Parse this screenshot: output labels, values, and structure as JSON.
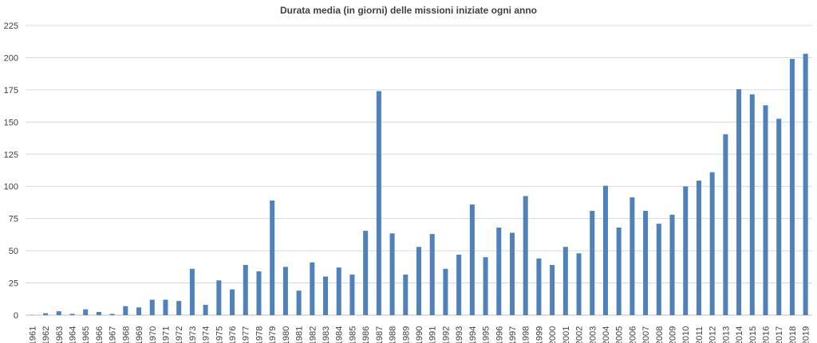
{
  "chart_data": {
    "type": "bar",
    "title": "Durata media (in giorni) delle missioni iniziate ogni anno",
    "xlabel": "",
    "ylabel": "",
    "ylim": [
      0,
      225
    ],
    "yticks": [
      0,
      25,
      50,
      75,
      100,
      125,
      150,
      175,
      200,
      225
    ],
    "grid": true,
    "legend": "none",
    "bar_color": "#4F81BD",
    "categories": [
      "1961",
      "1962",
      "1963",
      "1964",
      "1965",
      "1966",
      "1967",
      "1968",
      "1969",
      "1970",
      "1971",
      "1972",
      "1973",
      "1974",
      "1975",
      "1976",
      "1977",
      "1978",
      "1979",
      "1980",
      "1981",
      "1982",
      "1983",
      "1984",
      "1985",
      "1986",
      "1987",
      "1988",
      "1989",
      "1990",
      "1991",
      "1992",
      "1993",
      "1994",
      "1995",
      "1996",
      "1997",
      "1998",
      "1999",
      "2000",
      "2001",
      "2002",
      "2003",
      "2004",
      "2005",
      "2006",
      "2007",
      "2008",
      "2009",
      "2010",
      "2011",
      "2012",
      "2013",
      "2014",
      "2015",
      "2016",
      "2017",
      "2018",
      "2019"
    ],
    "values": [
      0.2,
      1.5,
      3,
      1,
      4.5,
      2.5,
      1,
      7,
      6,
      12,
      12,
      11,
      36,
      8,
      27,
      20,
      39,
      34,
      89,
      37.5,
      19,
      41,
      30,
      37,
      31.5,
      65.5,
      174,
      63.5,
      31.5,
      53,
      63,
      36,
      47,
      86,
      45,
      68,
      64,
      92.5,
      44,
      39,
      53,
      48,
      81,
      100.5,
      68,
      91.5,
      81,
      71,
      78,
      100,
      104.5,
      111,
      140.5,
      175.5,
      171.5,
      163,
      152.5,
      199,
      203
    ]
  }
}
